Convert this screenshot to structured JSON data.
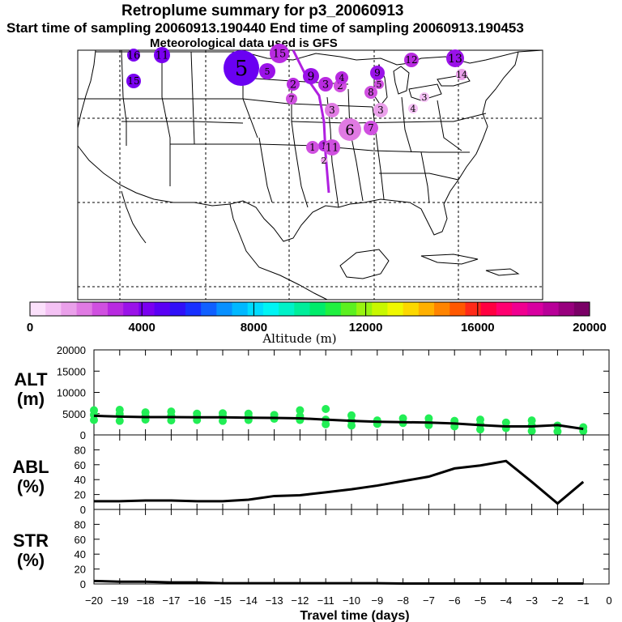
{
  "header": {
    "title": "Retroplume summary for p3_20060913",
    "sampling": "Start time of sampling 20060913.190440     End time of sampling 20060913.190453",
    "met": "Meteorological data used is GFS"
  },
  "colorbar": {
    "ticks": [
      "0",
      "4000",
      "8000",
      "12000",
      "16000",
      "20000"
    ],
    "label": "Altitude (m)",
    "colors": [
      "#fbe0fb",
      "#f4c2f4",
      "#eaa0ea",
      "#e07ae3",
      "#d050e0",
      "#b82ae0",
      "#9a12e8",
      "#7a00f0",
      "#5a00f4",
      "#3010f8",
      "#1830ff",
      "#1060ff",
      "#0890ff",
      "#00b8ff",
      "#00dcff",
      "#00f4f4",
      "#00f2c8",
      "#00ee9a",
      "#00ec6a",
      "#20f040",
      "#5cf020",
      "#98f410",
      "#c8f800",
      "#f0f800",
      "#fcd800",
      "#ffb000",
      "#ff8400",
      "#ff5800",
      "#ff2a18",
      "#ff0040",
      "#ff0070",
      "#f00090",
      "#d800a0",
      "#b80098",
      "#98007e",
      "#7a0066"
    ]
  },
  "map": {
    "labels": [
      {
        "t": "16",
        "c": "#7a00f0"
      },
      {
        "t": "11",
        "c": "#7a00f0"
      },
      {
        "t": "5",
        "c": "#6a00f2"
      },
      {
        "t": "5",
        "c": "#9a12e8"
      },
      {
        "t": "15",
        "c": "#b82ae0"
      },
      {
        "t": "15",
        "c": "#7a00f0"
      },
      {
        "t": "2",
        "c": "#b82ae0"
      },
      {
        "t": "7",
        "c": "#d050e0"
      },
      {
        "t": "9",
        "c": "#9a12e8"
      },
      {
        "t": "3",
        "c": "#b82ae0"
      },
      {
        "t": "2",
        "c": "#d050e0"
      },
      {
        "t": "4",
        "c": "#b82ae0"
      },
      {
        "t": "3",
        "c": "#e07ae3"
      },
      {
        "t": "12",
        "c": "#b82ae0"
      },
      {
        "t": "1",
        "c": "#b82ae0"
      },
      {
        "t": "13",
        "c": "#9a12e8"
      },
      {
        "t": "14",
        "c": "#eaa0ea"
      },
      {
        "t": "9",
        "c": "#9a12e8"
      },
      {
        "t": "5",
        "c": "#d050e0"
      },
      {
        "t": "8",
        "c": "#d050e0"
      },
      {
        "t": "3",
        "c": "#eaa0ea"
      },
      {
        "t": "3",
        "c": "#f4c2f4"
      },
      {
        "t": "4",
        "c": "#f4c2f4"
      },
      {
        "t": "6",
        "c": "#e07ae3"
      },
      {
        "t": "7",
        "c": "#d050e0"
      },
      {
        "t": "1",
        "c": "#d050e0"
      },
      {
        "t": "11",
        "c": "#d050e0"
      },
      {
        "t": "2",
        "c": "#eaa0ea"
      }
    ]
  },
  "chart_data": [
    {
      "type": "scatter+line",
      "panel": "ALT",
      "ylabel": "ALT\n(m)",
      "ylabel_lines": [
        "ALT",
        "(m)"
      ],
      "ylim": [
        0,
        20000
      ],
      "yticks": [
        "0",
        "5000",
        "10000",
        "15000",
        "20000"
      ],
      "xlim": [
        -20,
        0
      ],
      "line": {
        "x": [
          -20,
          -19,
          -18,
          -17,
          -16,
          -15,
          -14,
          -13,
          -12,
          -11,
          -10,
          -9,
          -8,
          -7,
          -6,
          -5,
          -4,
          -3,
          -2,
          -1
        ],
        "y": [
          4500,
          4300,
          4200,
          4200,
          4150,
          4150,
          4050,
          4000,
          3900,
          3600,
          3300,
          3100,
          3000,
          2900,
          2700,
          2300,
          2000,
          2000,
          2300,
          1400
        ]
      },
      "points": {
        "color": "#22ee55",
        "x": [
          -20,
          -20,
          -20,
          -19,
          -19,
          -19,
          -18,
          -18,
          -18,
          -17,
          -17,
          -17,
          -16,
          -16,
          -16,
          -15,
          -15,
          -15,
          -14,
          -14,
          -14,
          -13,
          -13,
          -12,
          -12,
          -12,
          -11,
          -11,
          -11,
          -10,
          -10,
          -10,
          -9,
          -9,
          -8,
          -8,
          -7,
          -7,
          -7,
          -6,
          -6,
          -5,
          -5,
          -5,
          -4,
          -4,
          -3,
          -3,
          -3,
          -2,
          -2,
          -1,
          -1
        ],
        "y": [
          3500,
          4700,
          5800,
          3300,
          4900,
          5900,
          3600,
          4400,
          5300,
          3400,
          4500,
          5500,
          3500,
          4300,
          5000,
          3300,
          4400,
          5100,
          3500,
          4400,
          5000,
          3800,
          4700,
          3500,
          4400,
          5800,
          2500,
          3600,
          6100,
          2200,
          3300,
          4600,
          2600,
          3400,
          2800,
          3900,
          2300,
          2900,
          3900,
          2000,
          3300,
          1300,
          2500,
          3600,
          1600,
          2900,
          900,
          2200,
          3400,
          800,
          2200,
          900,
          1800
        ]
      }
    },
    {
      "type": "line",
      "panel": "ABL",
      "ylabel": "ABL\n(%)",
      "ylabel_lines": [
        "ABL",
        "(%)"
      ],
      "ylim": [
        0,
        100
      ],
      "yticks": [
        "0",
        "20",
        "40",
        "60",
        "80"
      ],
      "xlim": [
        -20,
        0
      ],
      "x": [
        -20,
        -19,
        -18,
        -17,
        -16,
        -15,
        -14,
        -13,
        -12,
        -11,
        -10,
        -9,
        -8,
        -7,
        -6,
        -5,
        -4,
        -3,
        -2,
        -1
      ],
      "y": [
        11,
        11,
        12,
        12,
        11,
        11,
        13,
        18,
        19,
        23,
        27,
        32,
        38,
        44,
        55,
        59,
        65,
        37,
        8,
        37
      ]
    },
    {
      "type": "line",
      "panel": "STR",
      "ylabel": "STR\n(%)",
      "ylabel_lines": [
        "STR",
        "(%)"
      ],
      "ylim": [
        0,
        100
      ],
      "yticks": [
        "0",
        "20",
        "40",
        "60",
        "80"
      ],
      "xlim": [
        -20,
        0
      ],
      "xlabel": "Travel time (days)",
      "xticks": [
        "−20",
        "−19",
        "−18",
        "−17",
        "−16",
        "−15",
        "−14",
        "−13",
        "−12",
        "−11",
        "−10",
        "−9",
        "−8",
        "−7",
        "−6",
        "−5",
        "−4",
        "−3",
        "−2",
        "−1",
        "0"
      ],
      "x": [
        -20,
        -19,
        -18,
        -17,
        -16,
        -15,
        -14,
        -13,
        -12,
        -11,
        -10,
        -9,
        -8,
        -7,
        -6,
        -5,
        -4,
        -3,
        -2,
        -1
      ],
      "y": [
        4,
        3,
        3,
        2,
        2,
        1,
        1,
        1,
        1,
        1,
        1,
        1,
        0.5,
        0.5,
        0.5,
        0.5,
        0.5,
        0.5,
        0.5,
        0.5
      ]
    }
  ]
}
